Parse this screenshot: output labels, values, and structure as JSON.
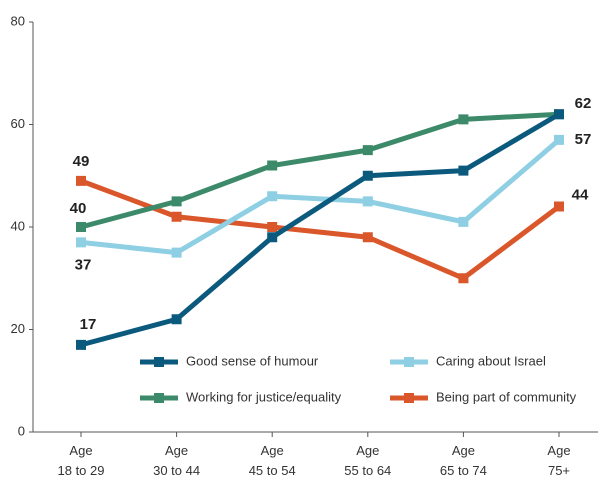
{
  "chart_data": {
    "type": "line",
    "categories": [
      "Age\n18 to 29",
      "Age\n30 to 44",
      "Age\n45 to 54",
      "Age\n55 to 64",
      "Age\n65 to 74",
      "Age\n75+"
    ],
    "series": [
      {
        "name": "Good sense of humour",
        "color": "#0b5a7e",
        "values": [
          17,
          22,
          38,
          50,
          51,
          62
        ]
      },
      {
        "name": "Caring about Israel",
        "color": "#8ecfe3",
        "values": [
          37,
          35,
          46,
          45,
          41,
          57
        ]
      },
      {
        "name": "Working for justice/equality",
        "color": "#3d8a6a",
        "values": [
          40,
          45,
          52,
          55,
          61,
          62
        ]
      },
      {
        "name": "Being part of community",
        "color": "#d9572a",
        "values": [
          49,
          42,
          40,
          38,
          30,
          44
        ]
      }
    ],
    "ylim": [
      0,
      80
    ],
    "yticks": [
      0,
      20,
      40,
      60,
      80
    ],
    "grid": false
  }
}
